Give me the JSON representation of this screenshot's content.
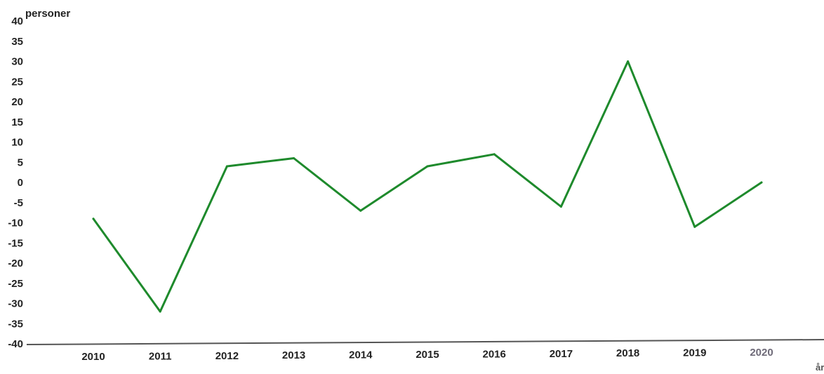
{
  "chart_data": {
    "type": "line",
    "title": "",
    "xlabel": "år",
    "ylabel": "personer",
    "categories": [
      "2010",
      "2011",
      "2012",
      "2013",
      "2014",
      "2015",
      "2016",
      "2017",
      "2018",
      "2019",
      "2020"
    ],
    "series": [
      {
        "values": [
          -9,
          -32,
          4,
          6,
          -7,
          4,
          7,
          -6,
          30,
          -11,
          0
        ]
      }
    ],
    "yticks": [
      "-40",
      "-35",
      "-30",
      "-25",
      "-20",
      "-15",
      "-10",
      "-5",
      "0",
      "5",
      "10",
      "15",
      "20",
      "25",
      "30",
      "35",
      "40"
    ],
    "ylim": [
      -40,
      40
    ],
    "grid": false,
    "legend": "none",
    "colors": {
      "line": "#1e8a2c",
      "axis": "#555555",
      "text": "#222222"
    }
  }
}
